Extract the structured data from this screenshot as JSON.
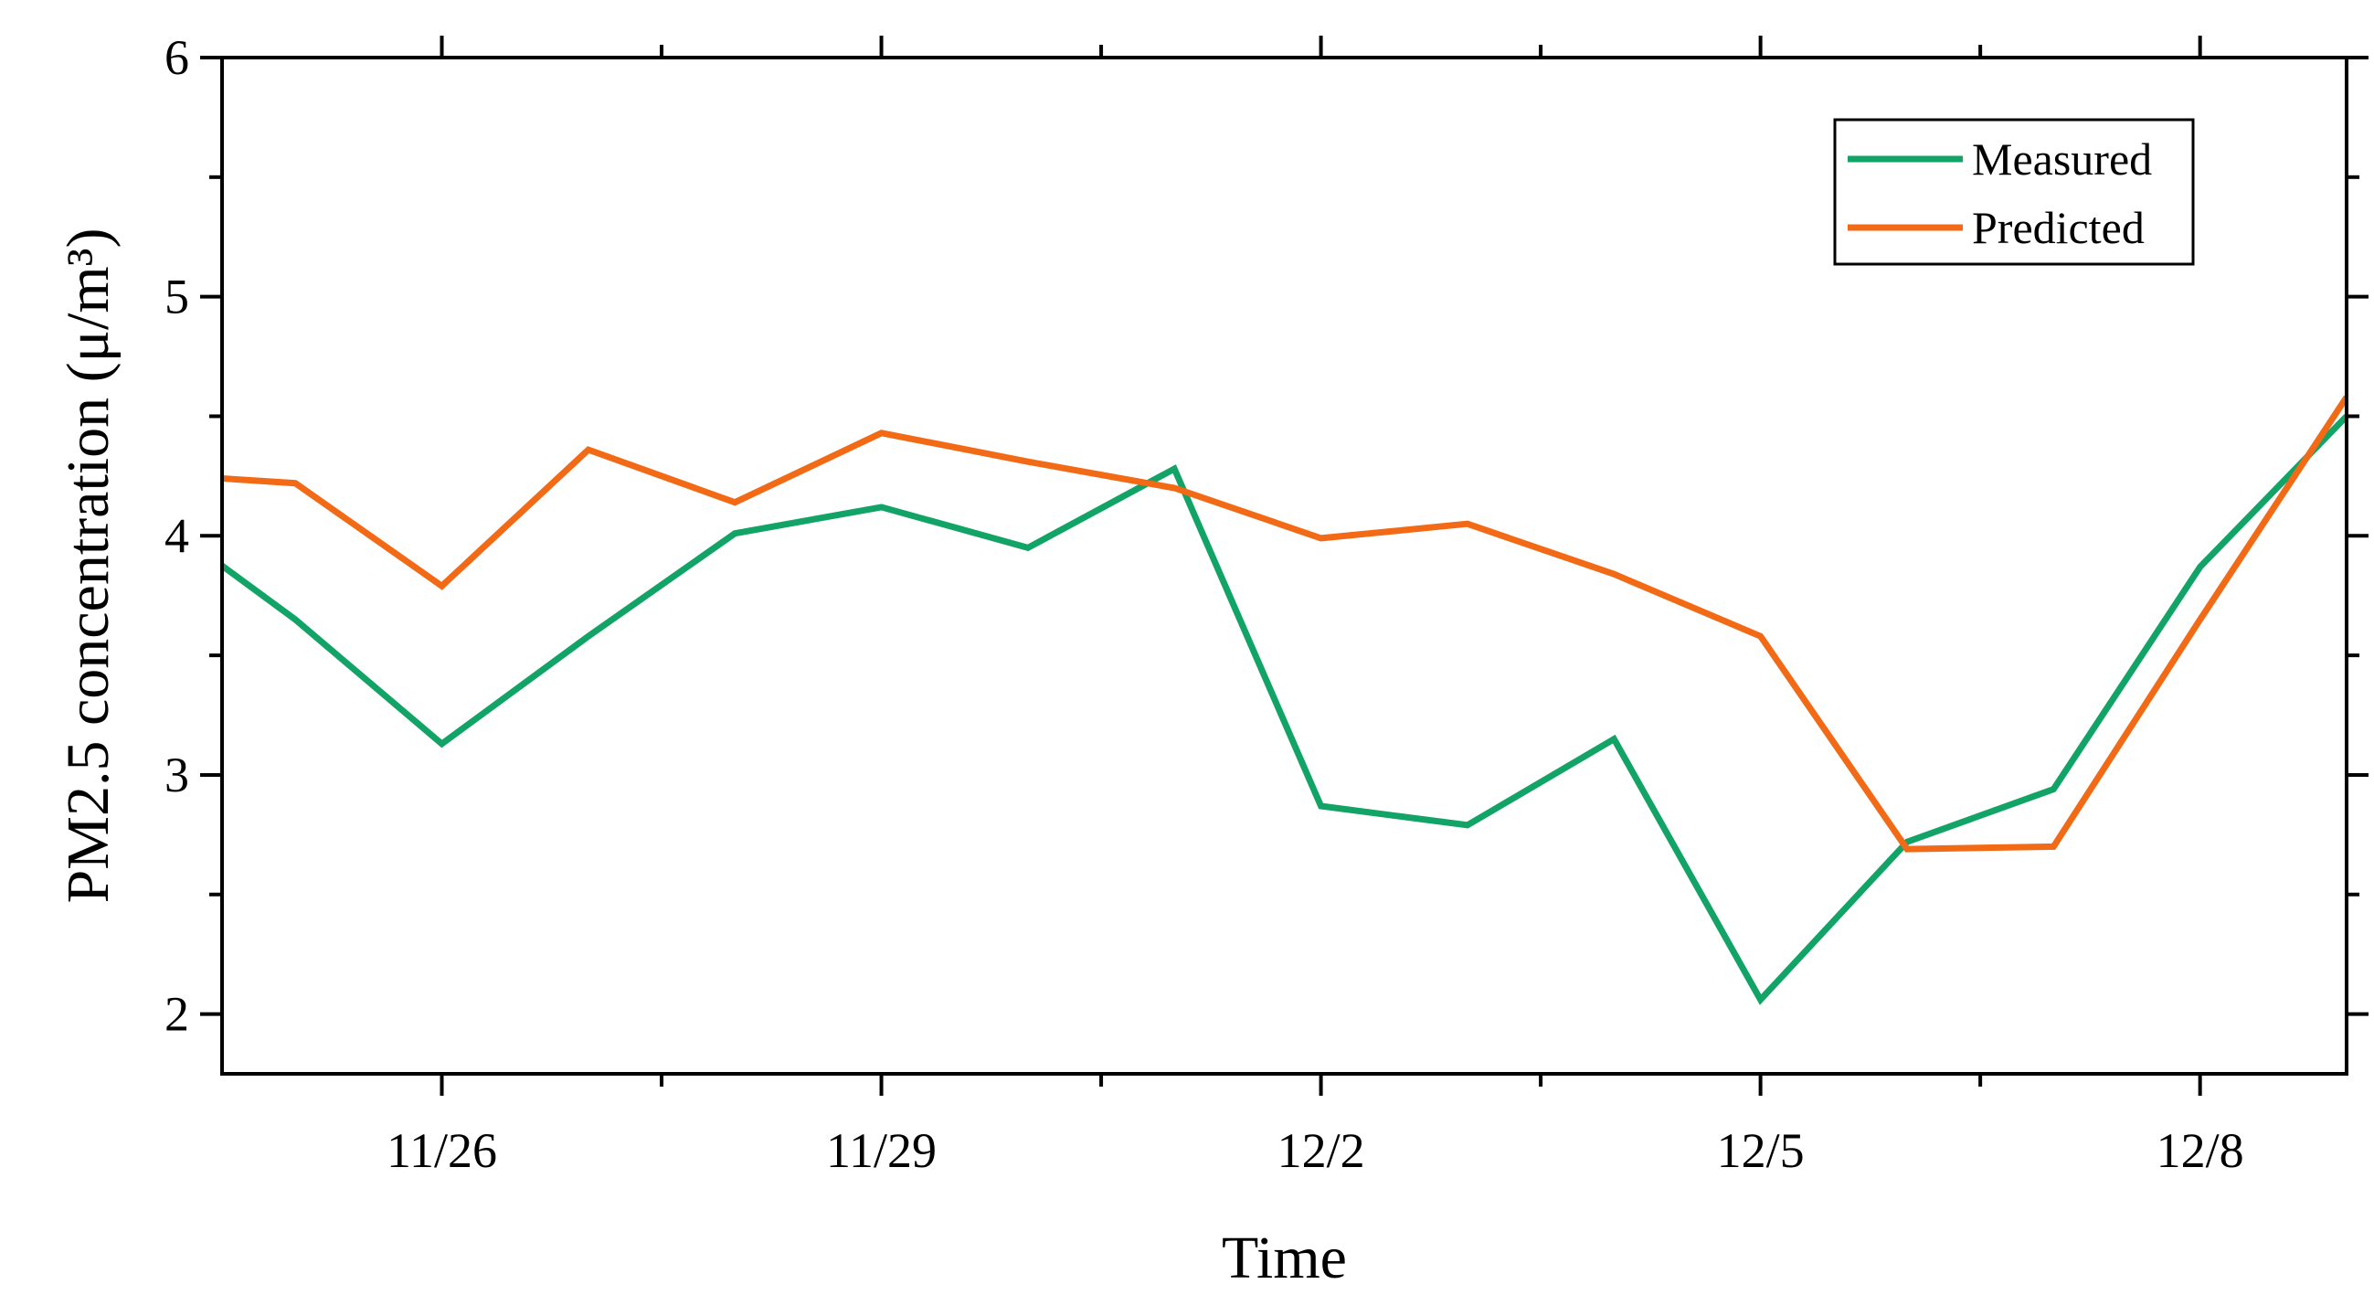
{
  "chart_data": {
    "type": "line",
    "title": "",
    "xlabel": "Time",
    "ylabel": "PM2.5 concentration (μ/m³)",
    "x": [
      "11/24",
      "11/25",
      "11/26",
      "11/27",
      "11/28",
      "11/29",
      "11/30",
      "12/1",
      "12/2",
      "12/3",
      "12/4",
      "12/5",
      "12/6",
      "12/7",
      "12/8",
      "12/9"
    ],
    "xticks": [
      "11/26",
      "11/29",
      "12/2",
      "12/5",
      "12/8"
    ],
    "xlim": [
      "11/24",
      "12/9"
    ],
    "ylim": [
      1.75,
      6
    ],
    "yticks": [
      2,
      3,
      4,
      5,
      6
    ],
    "grid": false,
    "legend_position": "top-right",
    "series": [
      {
        "name": "Measured",
        "color": "#12a366",
        "values": [
          4.1,
          3.65,
          3.13,
          3.58,
          4.01,
          4.12,
          3.95,
          4.28,
          2.87,
          2.79,
          3.15,
          2.06,
          2.72,
          2.94,
          3.87,
          4.5
        ]
      },
      {
        "name": "Predicted",
        "color": "#f26a16",
        "values": [
          4.26,
          4.22,
          3.79,
          4.36,
          4.14,
          4.43,
          4.31,
          4.2,
          3.99,
          4.05,
          3.84,
          3.58,
          2.69,
          2.7,
          3.65,
          4.58
        ]
      }
    ]
  }
}
